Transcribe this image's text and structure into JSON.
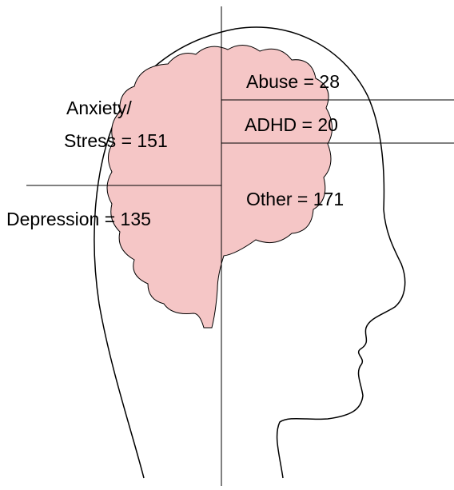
{
  "labels": {
    "abuse": "Abuse = 28",
    "adhd": "ADHD = 20",
    "anxiety": [
      "Anxiety/",
      "Stress = 151"
    ],
    "depression": "Depression = 135",
    "other": "Other = 171"
  }
}
